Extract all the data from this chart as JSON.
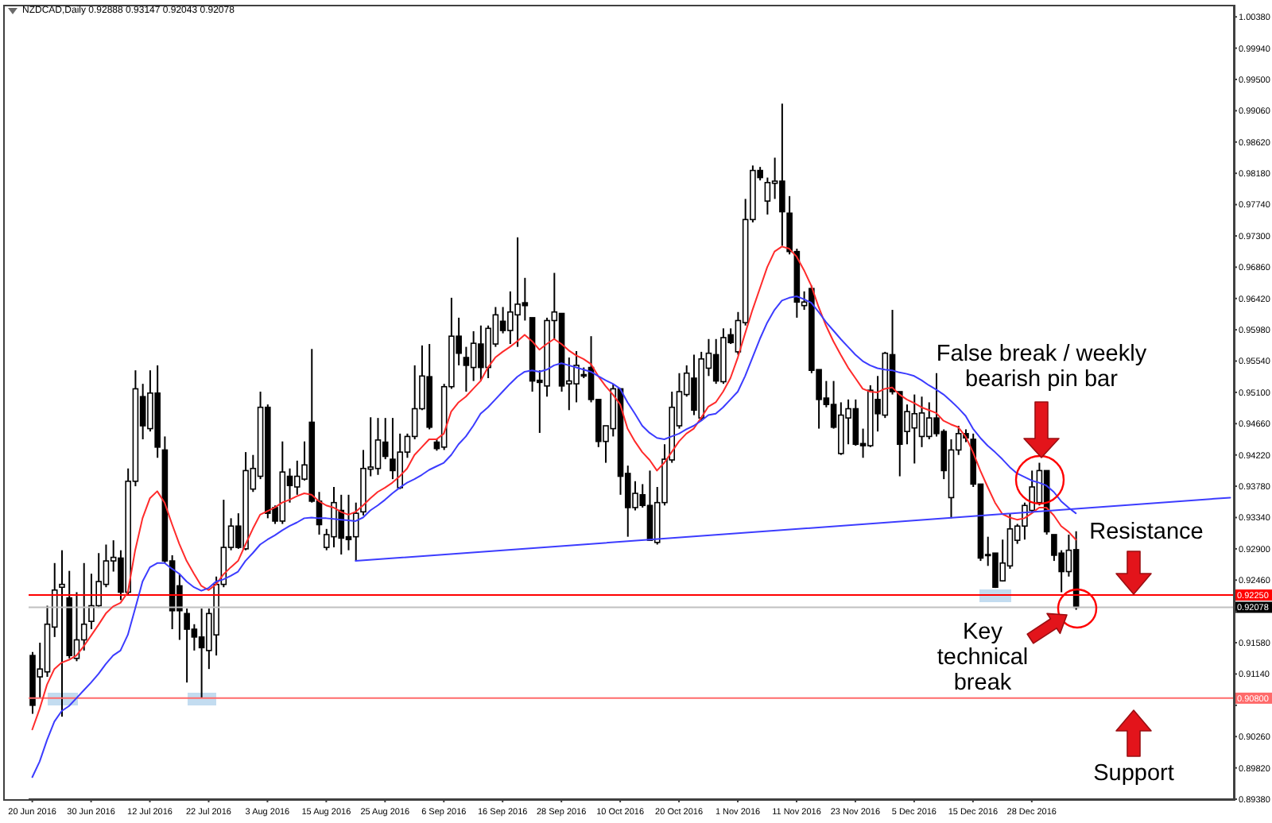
{
  "chart_data": {
    "type": "candlestick",
    "title": "NZDCAD,Daily 0.92888 0.93147 0.92043 0.92078",
    "color": "#000000",
    "marker": "none",
    "categories": [
      "20 Jun 2016",
      null,
      null,
      null,
      null,
      null,
      null,
      null,
      "30 Jun 2016",
      null,
      null,
      null,
      null,
      null,
      null,
      null,
      "12 Jul 2016",
      null,
      null,
      null,
      null,
      null,
      null,
      null,
      "22 Jul 2016",
      null,
      null,
      null,
      null,
      null,
      null,
      null,
      "3 Aug 2016",
      null,
      null,
      null,
      null,
      null,
      null,
      null,
      "15 Aug 2016",
      null,
      null,
      null,
      null,
      null,
      null,
      null,
      "25 Aug 2016",
      null,
      null,
      null,
      null,
      null,
      null,
      null,
      "6 Sep 2016",
      null,
      null,
      null,
      null,
      null,
      null,
      null,
      "16 Sep 2016",
      null,
      null,
      null,
      null,
      null,
      null,
      null,
      "28 Sep 2016",
      null,
      null,
      null,
      null,
      null,
      null,
      null,
      "10 Oct 2016",
      null,
      null,
      null,
      null,
      null,
      null,
      null,
      "20 Oct 2016",
      null,
      null,
      null,
      null,
      null,
      null,
      null,
      "1 Nov 2016",
      null,
      null,
      null,
      null,
      null,
      null,
      null,
      "11 Nov 2016",
      null,
      null,
      null,
      null,
      null,
      null,
      null,
      "23 Nov 2016",
      null,
      null,
      null,
      null,
      null,
      null,
      null,
      "5 Dec 2016",
      null,
      null,
      null,
      null,
      null,
      null,
      null,
      "15 Dec 2016",
      null,
      null,
      null,
      null,
      null,
      null,
      null,
      "28 Dec 2016",
      null,
      null,
      null,
      null,
      null,
      null,
      null,
      null,
      null,
      null,
      null,
      null,
      null,
      null,
      null,
      null,
      null,
      null,
      null,
      null,
      null,
      null,
      null,
      null,
      null,
      null,
      null
    ],
    "ohlc": [
      [
        0.914,
        0.9145,
        0.9058,
        0.907
      ],
      [
        0.911,
        0.9158,
        0.908,
        0.9121
      ],
      [
        0.9117,
        0.921,
        0.911,
        0.9184
      ],
      [
        0.918,
        0.927,
        0.9166,
        0.9232
      ],
      [
        0.9236,
        0.9288,
        0.9054,
        0.924
      ],
      [
        0.9221,
        0.9259,
        0.9136,
        0.914
      ],
      [
        0.9136,
        0.9229,
        0.9132,
        0.9162
      ],
      [
        0.9162,
        0.927,
        0.9147,
        0.9184
      ],
      [
        0.9188,
        0.9255,
        0.9177,
        0.921
      ],
      [
        0.921,
        0.9284,
        0.9207,
        0.9244
      ],
      [
        0.924,
        0.9296,
        0.9236,
        0.9273
      ],
      [
        0.9273,
        0.9302,
        0.9258,
        0.9278
      ],
      [
        0.9277,
        0.9288,
        0.9218,
        0.9229
      ],
      [
        0.9229,
        0.9403,
        0.9225,
        0.9385
      ],
      [
        0.9385,
        0.9541,
        0.9378,
        0.9515
      ],
      [
        0.9504,
        0.9522,
        0.9444,
        0.9463
      ],
      [
        0.9459,
        0.9541,
        0.9455,
        0.9509
      ],
      [
        0.9509,
        0.9548,
        0.9418,
        0.9433
      ],
      [
        0.9429,
        0.9448,
        0.927,
        0.9273
      ],
      [
        0.9273,
        0.9281,
        0.9177,
        0.9203
      ],
      [
        0.9238,
        0.9255,
        0.9162,
        0.9203
      ],
      [
        0.9199,
        0.9206,
        0.9102,
        0.9177
      ],
      [
        0.9177,
        0.9184,
        0.9147,
        0.9166
      ],
      [
        0.9166,
        0.9206,
        0.908,
        0.9151
      ],
      [
        0.9147,
        0.9206,
        0.9121,
        0.9199
      ],
      [
        0.9169,
        0.9251,
        0.914,
        0.924
      ],
      [
        0.924,
        0.9359,
        0.9236,
        0.9292
      ],
      [
        0.9292,
        0.9333,
        0.9288,
        0.9322
      ],
      [
        0.9322,
        0.934,
        0.929,
        0.9292
      ],
      [
        0.929,
        0.9426,
        0.9288,
        0.94
      ],
      [
        0.9374,
        0.9422,
        0.937,
        0.9403
      ],
      [
        0.9392,
        0.9511,
        0.9388,
        0.9489
      ],
      [
        0.9489,
        0.9493,
        0.9333,
        0.934
      ],
      [
        0.9348,
        0.9351,
        0.9325,
        0.9329
      ],
      [
        0.9329,
        0.9441,
        0.9325,
        0.9398
      ],
      [
        0.9392,
        0.9403,
        0.9355,
        0.9379
      ],
      [
        0.9377,
        0.9414,
        0.9366,
        0.9392
      ],
      [
        0.9388,
        0.9441,
        0.9386,
        0.9408
      ],
      [
        0.9468,
        0.9571,
        0.9355,
        0.9357
      ],
      [
        0.9357,
        0.937,
        0.931,
        0.9324
      ],
      [
        0.9292,
        0.9318,
        0.9288,
        0.931
      ],
      [
        0.9307,
        0.9377,
        0.9292,
        0.9355
      ],
      [
        0.9344,
        0.9366,
        0.9282,
        0.9305
      ],
      [
        0.9307,
        0.9366,
        0.9288,
        0.9303
      ],
      [
        0.9307,
        0.9355,
        0.9273,
        0.934
      ],
      [
        0.9342,
        0.9429,
        0.9337,
        0.9403
      ],
      [
        0.9402,
        0.9475,
        0.9392,
        0.9405
      ],
      [
        0.9403,
        0.9474,
        0.9394,
        0.9443
      ],
      [
        0.944,
        0.9474,
        0.9416,
        0.942
      ],
      [
        0.9416,
        0.9474,
        0.9388,
        0.94
      ],
      [
        0.9376,
        0.9452,
        0.9374,
        0.9426
      ],
      [
        0.9426,
        0.9452,
        0.9418,
        0.9448
      ],
      [
        0.9448,
        0.9548,
        0.9444,
        0.9487
      ],
      [
        0.9487,
        0.9576,
        0.9485,
        0.9533
      ],
      [
        0.9532,
        0.9578,
        0.9458,
        0.9461
      ],
      [
        0.944,
        0.9444,
        0.9428,
        0.9431
      ],
      [
        0.9433,
        0.9522,
        0.9429,
        0.9518
      ],
      [
        0.9518,
        0.9643,
        0.9515,
        0.9589
      ],
      [
        0.9589,
        0.9615,
        0.9548,
        0.9565
      ],
      [
        0.9559,
        0.9574,
        0.9511,
        0.9548
      ],
      [
        0.9545,
        0.9596,
        0.9526,
        0.9579
      ],
      [
        0.9578,
        0.9604,
        0.9526,
        0.9545
      ],
      [
        0.9545,
        0.9604,
        0.953,
        0.96
      ],
      [
        0.9578,
        0.963,
        0.9574,
        0.9619
      ],
      [
        0.961,
        0.963,
        0.9593,
        0.9597
      ],
      [
        0.9597,
        0.9652,
        0.9578,
        0.9623
      ],
      [
        0.9619,
        0.9728,
        0.9574,
        0.9634
      ],
      [
        0.9636,
        0.9671,
        0.9611,
        0.9632
      ],
      [
        0.9615,
        0.9615,
        0.9511,
        0.9526
      ],
      [
        0.9527,
        0.9541,
        0.9453,
        0.9524
      ],
      [
        0.9519,
        0.9615,
        0.9504,
        0.9611
      ],
      [
        0.9611,
        0.9678,
        0.9585,
        0.9623
      ],
      [
        0.9621,
        0.9621,
        0.9511,
        0.9519
      ],
      [
        0.9522,
        0.9559,
        0.9485,
        0.9526
      ],
      [
        0.9522,
        0.9568,
        0.9496,
        0.9548
      ],
      [
        0.9535,
        0.9545,
        0.953,
        0.9533
      ],
      [
        0.9545,
        0.9589,
        0.9496,
        0.95
      ],
      [
        0.95,
        0.95,
        0.9433,
        0.9441
      ],
      [
        0.9441,
        0.9463,
        0.9411,
        0.9463
      ],
      [
        0.9459,
        0.9522,
        0.9448,
        0.9515
      ],
      [
        0.9515,
        0.9515,
        0.9366,
        0.9392
      ],
      [
        0.9396,
        0.9407,
        0.9307,
        0.9348
      ],
      [
        0.9348,
        0.9385,
        0.9344,
        0.9368
      ],
      [
        0.9366,
        0.9381,
        0.9348,
        0.9351
      ],
      [
        0.9351,
        0.94,
        0.9302,
        0.9302
      ],
      [
        0.9299,
        0.9377,
        0.9296,
        0.9355
      ],
      [
        0.9355,
        0.9437,
        0.9351,
        0.9416
      ],
      [
        0.9415,
        0.9511,
        0.9411,
        0.9489
      ],
      [
        0.9463,
        0.9537,
        0.9459,
        0.9511
      ],
      [
        0.9507,
        0.9548,
        0.9504,
        0.9537
      ],
      [
        0.953,
        0.9563,
        0.9478,
        0.9485
      ],
      [
        0.9474,
        0.9567,
        0.947,
        0.9557
      ],
      [
        0.9544,
        0.9585,
        0.9533,
        0.9565
      ],
      [
        0.9563,
        0.9585,
        0.9522,
        0.9526
      ],
      [
        0.9525,
        0.96,
        0.9522,
        0.9587
      ],
      [
        0.9591,
        0.96,
        0.9578,
        0.958
      ],
      [
        0.9567,
        0.9623,
        0.9563,
        0.9611
      ],
      [
        0.9608,
        0.9782,
        0.9604,
        0.9753
      ],
      [
        0.9753,
        0.9829,
        0.9749,
        0.9822
      ],
      [
        0.9822,
        0.9827,
        0.9808,
        0.9812
      ],
      [
        0.9779,
        0.9812,
        0.976,
        0.9805
      ],
      [
        0.9804,
        0.984,
        0.9782,
        0.9807
      ],
      [
        0.9807,
        0.9916,
        0.9716,
        0.9764
      ],
      [
        0.9762,
        0.9786,
        0.9704,
        0.9708
      ],
      [
        0.9708,
        0.9712,
        0.9615,
        0.9637
      ],
      [
        0.9632,
        0.9652,
        0.9626,
        0.9637
      ],
      [
        0.9656,
        0.966,
        0.9537,
        0.9541
      ],
      [
        0.9542,
        0.9542,
        0.9459,
        0.95
      ],
      [
        0.9502,
        0.9526,
        0.9489,
        0.9493
      ],
      [
        0.9493,
        0.9526,
        0.9459,
        0.9461
      ],
      [
        0.9424,
        0.9496,
        0.9422,
        0.9478
      ],
      [
        0.9474,
        0.95,
        0.9437,
        0.9487
      ],
      [
        0.9487,
        0.95,
        0.9435,
        0.9437
      ],
      [
        0.9438,
        0.9459,
        0.9418,
        0.9435
      ],
      [
        0.9435,
        0.952,
        0.9433,
        0.9513
      ],
      [
        0.95,
        0.9533,
        0.9455,
        0.948
      ],
      [
        0.9478,
        0.9567,
        0.9474,
        0.9565
      ],
      [
        0.9563,
        0.9626,
        0.9507,
        0.9511
      ],
      [
        0.9511,
        0.9511,
        0.9392,
        0.9437
      ],
      [
        0.9455,
        0.9493,
        0.9437,
        0.9483
      ],
      [
        0.946,
        0.9507,
        0.941,
        0.948
      ],
      [
        0.9448,
        0.9504,
        0.9433,
        0.9481
      ],
      [
        0.9448,
        0.9496,
        0.9444,
        0.9474
      ],
      [
        0.9474,
        0.9537,
        0.9448,
        0.9452
      ],
      [
        0.9455,
        0.9458,
        0.9388,
        0.94
      ],
      [
        0.9362,
        0.9444,
        0.9333,
        0.9429
      ],
      [
        0.9429,
        0.9463,
        0.9422,
        0.9452
      ],
      [
        0.9452,
        0.9458,
        0.944,
        0.9446
      ],
      [
        0.9444,
        0.9452,
        0.9377,
        0.9381
      ],
      [
        0.9381,
        0.9381,
        0.9273,
        0.9277
      ],
      [
        0.9282,
        0.9307,
        0.9266,
        0.9281
      ],
      [
        0.9284,
        0.9284,
        0.9235,
        0.9236
      ],
      [
        0.9245,
        0.9303,
        0.9244,
        0.927
      ],
      [
        0.9266,
        0.934,
        0.9262,
        0.9318
      ],
      [
        0.9302,
        0.9325,
        0.9297,
        0.9322
      ],
      [
        0.9322,
        0.9355,
        0.9303,
        0.9351
      ],
      [
        0.9344,
        0.94,
        0.934,
        0.9377
      ],
      [
        0.9355,
        0.9411,
        0.9351,
        0.94
      ],
      [
        0.94,
        0.94,
        0.931,
        0.9314
      ],
      [
        0.931,
        0.931,
        0.9273,
        0.9281
      ],
      [
        0.9284,
        0.9288,
        0.9229,
        0.9258
      ],
      [
        0.9258,
        0.931,
        0.9251,
        0.9288
      ],
      [
        0.92888,
        0.93147,
        0.92043,
        0.92078
      ],
      null,
      null,
      null,
      null,
      null,
      null,
      null,
      null,
      null,
      null,
      null,
      null,
      null,
      null,
      null,
      null,
      null,
      null,
      null,
      null,
      null
    ],
    "series": [
      {
        "type": "line",
        "color": "#ff2b2b",
        "values": [
          0.9036,
          0.9065,
          0.9099,
          0.9121,
          0.913,
          0.9134,
          0.914,
          0.9153,
          0.9168,
          0.9183,
          0.9199,
          0.9209,
          0.9214,
          0.9229,
          0.9288,
          0.9333,
          0.9361,
          0.9371,
          0.9355,
          0.9325,
          0.9297,
          0.9273,
          0.9255,
          0.9238,
          0.9232,
          0.924,
          0.9254,
          0.9264,
          0.9273,
          0.9296,
          0.9318,
          0.9338,
          0.9343,
          0.9348,
          0.9355,
          0.9359,
          0.9364,
          0.9368,
          0.9366,
          0.9357,
          0.9351,
          0.9348,
          0.9342,
          0.9338,
          0.9342,
          0.9351,
          0.9361,
          0.937,
          0.9376,
          0.9383,
          0.9392,
          0.9403,
          0.9422,
          0.9433,
          0.9444,
          0.9444,
          0.9452,
          0.9483,
          0.9496,
          0.9504,
          0.9515,
          0.9526,
          0.9545,
          0.9559,
          0.9567,
          0.9574,
          0.9582,
          0.9591,
          0.9582,
          0.957,
          0.9578,
          0.9585,
          0.9578,
          0.9569,
          0.9562,
          0.9557,
          0.955,
          0.9533,
          0.9519,
          0.9507,
          0.9493,
          0.9459,
          0.9441,
          0.9426,
          0.9415,
          0.94,
          0.9411,
          0.9426,
          0.9441,
          0.9452,
          0.9459,
          0.9474,
          0.949,
          0.9496,
          0.9511,
          0.953,
          0.9559,
          0.9593,
          0.9626,
          0.9656,
          0.9686,
          0.9708,
          0.9715,
          0.9712,
          0.9701,
          0.9682,
          0.966,
          0.963,
          0.9604,
          0.9582,
          0.9563,
          0.9545,
          0.953,
          0.9515,
          0.9511,
          0.951,
          0.9515,
          0.9517,
          0.9507,
          0.95,
          0.9495,
          0.9489,
          0.9485,
          0.9481,
          0.947,
          0.9465,
          0.9461,
          0.9448,
          0.9426,
          0.94,
          0.9377,
          0.9355,
          0.9339,
          0.9334,
          0.9331,
          0.9333,
          0.934,
          0.9348,
          0.9348,
          0.9337,
          0.9322,
          0.9314,
          0.9303,
          null,
          null,
          null,
          null,
          null,
          null,
          null,
          null,
          null,
          null,
          null,
          null,
          null,
          null,
          null,
          null,
          null,
          null,
          null,
          null,
          null
        ]
      },
      {
        "type": "line",
        "color": "#3c3cff",
        "values": [
          0.8969,
          0.8991,
          0.9021,
          0.9047,
          0.9062,
          0.9069,
          0.908,
          0.9091,
          0.9102,
          0.9114,
          0.9128,
          0.914,
          0.9147,
          0.9169,
          0.9206,
          0.9244,
          0.9264,
          0.927,
          0.927,
          0.9262,
          0.9255,
          0.9244,
          0.9236,
          0.9231,
          0.9235,
          0.9244,
          0.9247,
          0.9252,
          0.9258,
          0.9273,
          0.9284,
          0.9296,
          0.9303,
          0.9309,
          0.9316,
          0.9322,
          0.9327,
          0.9333,
          0.9334,
          0.9333,
          0.9333,
          0.9332,
          0.9331,
          0.933,
          0.9329,
          0.9334,
          0.9344,
          0.9351,
          0.9359,
          0.9368,
          0.9376,
          0.9383,
          0.9388,
          0.9394,
          0.9401,
          0.9406,
          0.9411,
          0.9422,
          0.9437,
          0.9448,
          0.9463,
          0.948,
          0.9489,
          0.95,
          0.9511,
          0.9522,
          0.9532,
          0.9539,
          0.9541,
          0.9539,
          0.9542,
          0.9548,
          0.9551,
          0.9548,
          0.9545,
          0.9542,
          0.9539,
          0.9533,
          0.9527,
          0.9522,
          0.9515,
          0.9496,
          0.948,
          0.9463,
          0.9453,
          0.9446,
          0.9444,
          0.9448,
          0.9452,
          0.9458,
          0.9463,
          0.947,
          0.9478,
          0.948,
          0.9489,
          0.95,
          0.9511,
          0.9533,
          0.9559,
          0.9585,
          0.9608,
          0.9626,
          0.9639,
          0.9643,
          0.9645,
          0.9641,
          0.9636,
          0.9623,
          0.9609,
          0.9597,
          0.9585,
          0.9574,
          0.9563,
          0.9554,
          0.9548,
          0.9544,
          0.9542,
          0.9541,
          0.9538,
          0.9536,
          0.9533,
          0.9527,
          0.952,
          0.9514,
          0.9507,
          0.9498,
          0.9488,
          0.9477,
          0.9459,
          0.9446,
          0.9435,
          0.9426,
          0.9416,
          0.9405,
          0.9396,
          0.9391,
          0.9386,
          0.9383,
          0.9379,
          0.937,
          0.9357,
          0.9348,
          0.934,
          null,
          null,
          null,
          null,
          null,
          null,
          null,
          null,
          null,
          null,
          null,
          null,
          null,
          null,
          null,
          null,
          null,
          null,
          null,
          null,
          null
        ]
      },
      {
        "type": "line",
        "color": "#3c3cff",
        "values": [
          null,
          null,
          null,
          null,
          null,
          null,
          null,
          null,
          null,
          null,
          null,
          null,
          null,
          null,
          null,
          null,
          null,
          null,
          null,
          null,
          null,
          null,
          null,
          null,
          null,
          null,
          null,
          null,
          null,
          null,
          null,
          null,
          null,
          null,
          null,
          null,
          null,
          null,
          null,
          null,
          null,
          null,
          null,
          null,
          0.9273,
          null,
          null,
          null,
          null,
          null,
          null,
          null,
          null,
          null,
          null,
          null,
          null,
          null,
          null,
          null,
          null,
          null,
          null,
          null,
          null,
          null,
          null,
          null,
          null,
          null,
          null,
          null,
          null,
          null,
          null,
          null,
          null,
          null,
          null,
          null,
          null,
          null,
          null,
          null,
          null,
          null,
          null,
          null,
          null,
          null,
          null,
          null,
          null,
          null,
          null,
          null,
          null,
          null,
          null,
          null,
          null,
          null,
          null,
          null,
          null,
          null,
          null,
          null,
          null,
          null,
          null,
          null,
          null,
          null,
          null,
          null,
          null,
          null,
          null,
          null,
          null,
          null,
          null,
          null,
          null,
          null,
          null,
          null,
          null,
          null,
          null,
          null,
          null,
          null,
          null,
          null,
          null,
          null,
          null,
          null,
          null,
          null,
          null,
          null,
          null,
          null,
          null,
          null,
          null,
          null,
          null,
          null,
          null,
          null,
          null,
          null,
          null,
          null,
          null,
          null,
          null,
          null,
          null,
          0.9362
        ]
      }
    ],
    "ylim": [
      0.8938,
      1.0055
    ],
    "yticks": [
      {
        "value": 1.0038,
        "label": "1.00380"
      },
      {
        "value": 0.9994,
        "label": "0.99940"
      },
      {
        "value": 0.995,
        "label": "0.99500"
      },
      {
        "value": 0.9906,
        "label": "0.99060"
      },
      {
        "value": 0.9862,
        "label": "0.98620"
      },
      {
        "value": 0.9818,
        "label": "0.98180"
      },
      {
        "value": 0.9774,
        "label": "0.97740"
      },
      {
        "value": 0.973,
        "label": "0.97300"
      },
      {
        "value": 0.9686,
        "label": "0.96860"
      },
      {
        "value": 0.9642,
        "label": "0.96420"
      },
      {
        "value": 0.9598,
        "label": "0.95980"
      },
      {
        "value": 0.9554,
        "label": "0.95540"
      },
      {
        "value": 0.951,
        "label": "0.95100"
      },
      {
        "value": 0.9466,
        "label": "0.94660"
      },
      {
        "value": 0.9422,
        "label": "0.94220"
      },
      {
        "value": 0.9378,
        "label": "0.93780"
      },
      {
        "value": 0.9334,
        "label": "0.93340"
      },
      {
        "value": 0.929,
        "label": "0.92900"
      },
      {
        "value": 0.9246,
        "label": "0.92460"
      },
      {
        "value": 0.9202,
        "label": null
      },
      {
        "value": 0.9158,
        "label": "0.91580"
      },
      {
        "value": 0.9114,
        "label": "0.91140"
      },
      {
        "value": 0.907,
        "label": null
      },
      {
        "value": 0.9026,
        "label": "0.90260"
      },
      {
        "value": 0.8982,
        "label": "0.89820"
      },
      {
        "value": 0.8938,
        "label": "0.89380"
      }
    ],
    "ref_lines": [
      {
        "axis": "y",
        "value": 0.9225,
        "label": "0.92250",
        "color": "#ff0000"
      },
      {
        "axis": "y",
        "value": 0.92078,
        "label": "0.92078",
        "color": "#c0c0c0"
      },
      {
        "axis": "y",
        "value": 0.908,
        "label": "0.90800",
        "color": "#ff6a6a"
      }
    ],
    "annotations": [
      "False break / weekly bearish pin bar",
      "Resistance",
      "Key technical break",
      "Support"
    ]
  }
}
